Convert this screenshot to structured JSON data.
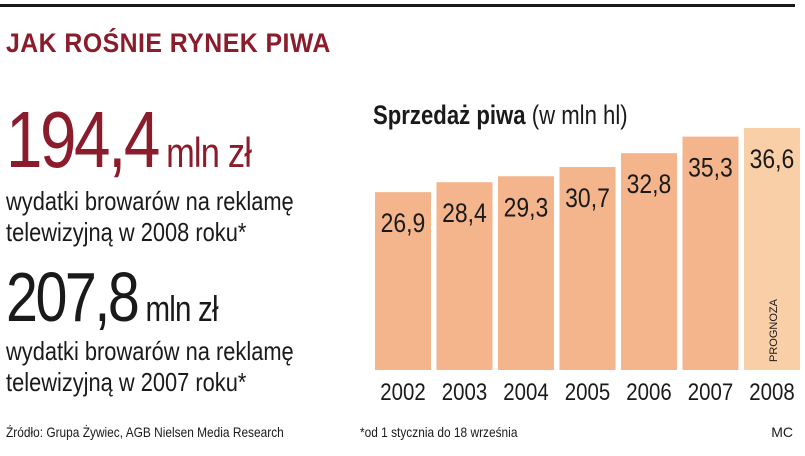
{
  "headline": "JAK ROŚNIE RYNEK PIWA",
  "stats": [
    {
      "value": "194,4",
      "unit": "mln zł",
      "description": "wydatki browarów na reklamę\ntelewizyjną w 2008 roku*"
    },
    {
      "value": "207,8",
      "unit": "mln zł",
      "description": "wydatki browarów na reklamę\ntelewizyjną w 2007 roku*"
    }
  ],
  "source": "Źródło: Grupa Żywiec, AGB Nielsen Media Research",
  "footnote": "*od 1 stycznia do 18 września",
  "credit": "MC",
  "chart_title": {
    "bold": "Sprzedaż piwa",
    "light": "(w mln hl)"
  },
  "colors": {
    "headline": "#8a1c2c",
    "bar": "#f5b58c",
    "bar_forecast": "#f9cfa8"
  },
  "chart_data": {
    "type": "bar",
    "title": "Sprzedaż piwa (w mln hl)",
    "categories": [
      "2002",
      "2003",
      "2004",
      "2005",
      "2006",
      "2007",
      "2008"
    ],
    "values": [
      26.9,
      28.4,
      29.3,
      30.7,
      32.8,
      35.3,
      36.6
    ],
    "value_labels": [
      "26,9",
      "28,4",
      "29,3",
      "30,7",
      "32,8",
      "35,3",
      "36,6"
    ],
    "forecast_category": "2008",
    "forecast_label": "PROGNOZA",
    "ylim": [
      0,
      36.6
    ],
    "grid": false
  }
}
